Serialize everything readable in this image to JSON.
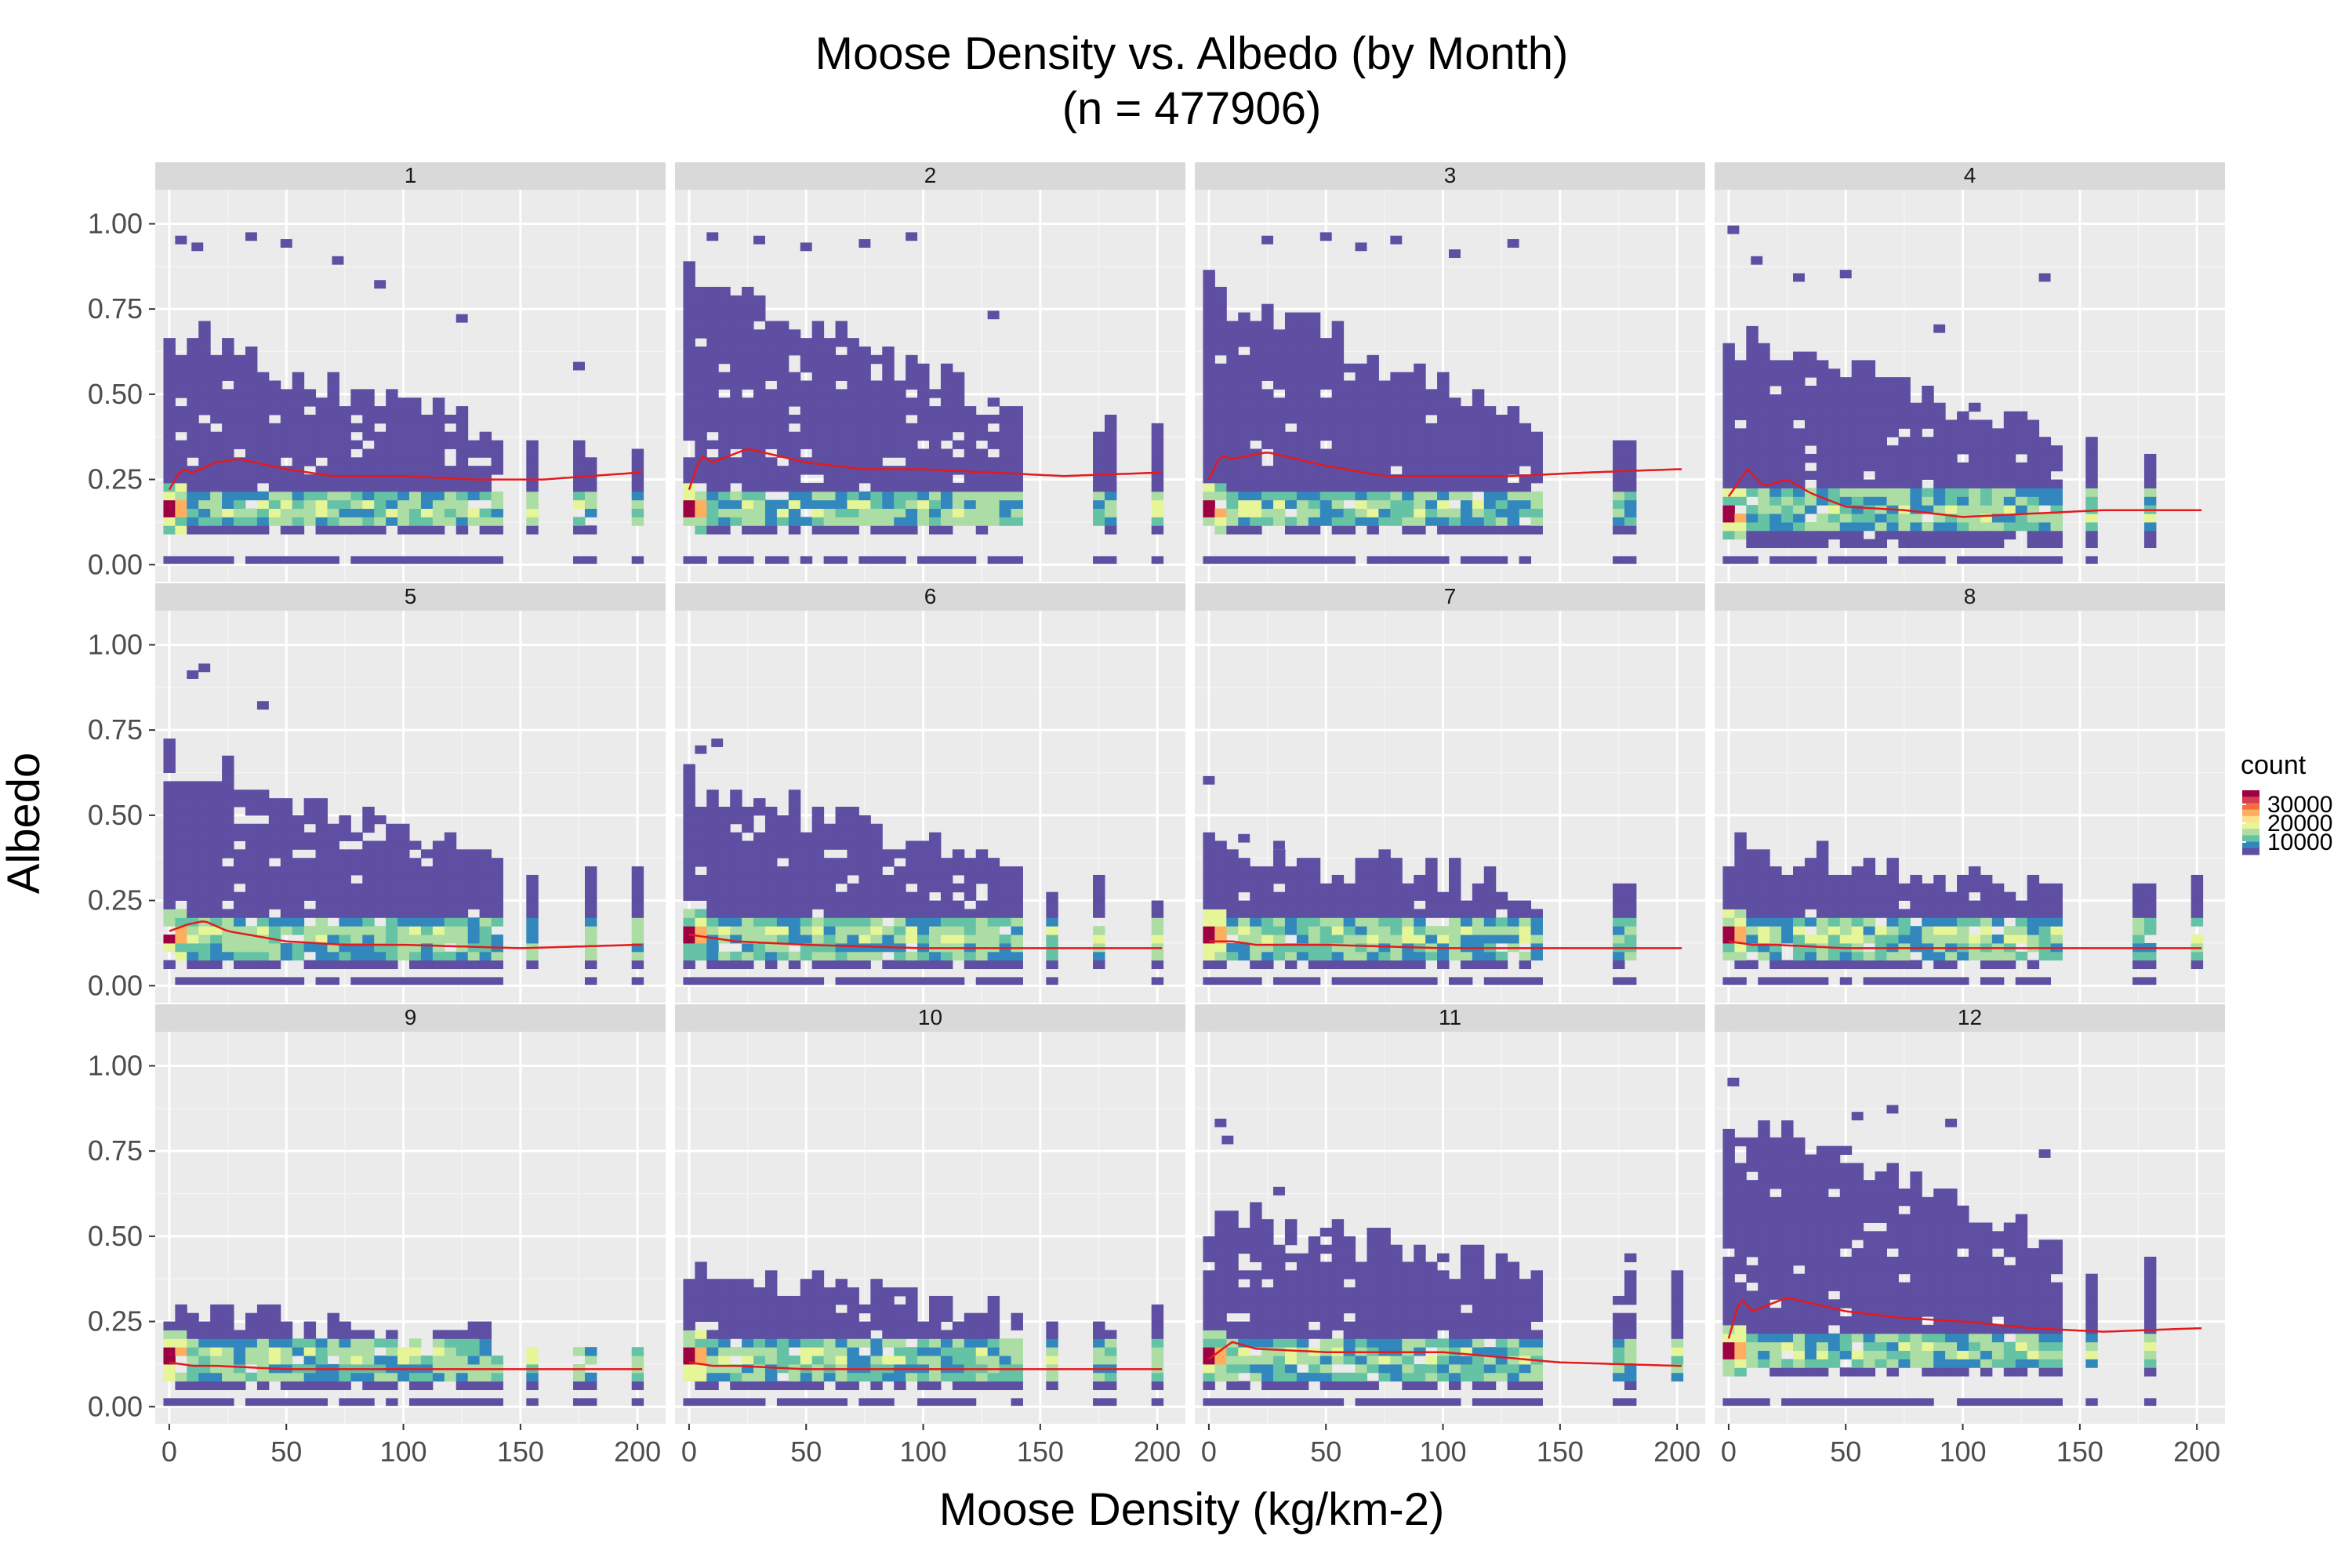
{
  "chart_data": {
    "type": "heatmap",
    "title_line1": "Moose Density vs. Albedo (by Month)",
    "title_line2": "(n = 477906)",
    "xlabel": "Moose Density (kg/km-2)",
    "ylabel": "Albedo",
    "xlim": [
      -6,
      212
    ],
    "ylim": [
      -0.05,
      1.1
    ],
    "x_ticks": [
      0,
      50,
      100,
      150,
      200
    ],
    "x_tick_labels": [
      "0",
      "50",
      "100",
      "150",
      "200"
    ],
    "y_ticks": [
      0,
      0.25,
      0.5,
      0.75,
      1.0
    ],
    "y_tick_labels": [
      "0.00",
      "0.25",
      "0.50",
      "0.75",
      "1.00"
    ],
    "facet_variable": "month",
    "facets": [
      {
        "month": "1",
        "max_albedo": 0.74,
        "min_albedo": 0.09,
        "outliers": [
          [
            5,
            0.94
          ],
          [
            12,
            0.92
          ],
          [
            35,
            0.95
          ],
          [
            50,
            0.93
          ],
          [
            72,
            0.88
          ],
          [
            90,
            0.81
          ],
          [
            125,
            0.71
          ],
          [
            175,
            0.57
          ]
        ],
        "density_cutoff": 0.9,
        "low_cluster_albedo": 0.15,
        "smooth_x": [
          0,
          5,
          10,
          20,
          30,
          50,
          70,
          100,
          130,
          160,
          200
        ],
        "smooth_y": [
          0.22,
          0.28,
          0.27,
          0.3,
          0.31,
          0.28,
          0.26,
          0.26,
          0.25,
          0.25,
          0.27
        ]
      },
      {
        "month": "2",
        "max_albedo": 0.89,
        "min_albedo": 0.09,
        "outliers": [
          [
            10,
            0.95
          ],
          [
            30,
            0.94
          ],
          [
            50,
            0.92
          ],
          [
            75,
            0.93
          ],
          [
            95,
            0.95
          ],
          [
            130,
            0.72
          ]
        ],
        "density_cutoff": 0.9,
        "low_cluster_albedo": 0.15,
        "smooth_x": [
          0,
          5,
          10,
          25,
          50,
          75,
          100,
          130,
          160,
          200
        ],
        "smooth_y": [
          0.22,
          0.32,
          0.3,
          0.34,
          0.3,
          0.28,
          0.28,
          0.27,
          0.26,
          0.27
        ]
      },
      {
        "month": "3",
        "max_albedo": 0.85,
        "min_albedo": 0.09,
        "outliers": [
          [
            25,
            0.94
          ],
          [
            50,
            0.95
          ],
          [
            65,
            0.92
          ],
          [
            80,
            0.94
          ],
          [
            105,
            0.9
          ],
          [
            130,
            0.93
          ]
        ],
        "density_cutoff": 0.9,
        "low_cluster_albedo": 0.15,
        "smooth_x": [
          0,
          5,
          10,
          25,
          50,
          75,
          100,
          130,
          160,
          200
        ],
        "smooth_y": [
          0.25,
          0.32,
          0.31,
          0.33,
          0.29,
          0.26,
          0.26,
          0.26,
          0.27,
          0.28
        ]
      },
      {
        "month": "4",
        "max_albedo": 0.72,
        "min_albedo": 0.05,
        "outliers": [
          [
            2,
            0.97
          ],
          [
            12,
            0.88
          ],
          [
            30,
            0.83
          ],
          [
            50,
            0.84
          ],
          [
            90,
            0.68
          ],
          [
            135,
            0.83
          ]
        ],
        "density_cutoff": 0.8,
        "low_cluster_albedo": 0.14,
        "smooth_x": [
          0,
          8,
          15,
          25,
          35,
          50,
          75,
          100,
          130,
          160,
          200
        ],
        "smooth_y": [
          0.2,
          0.28,
          0.23,
          0.25,
          0.21,
          0.17,
          0.16,
          0.14,
          0.15,
          0.16,
          0.16
        ]
      },
      {
        "month": "5",
        "max_albedo": 0.72,
        "min_albedo": 0.05,
        "outliers": [
          [
            10,
            0.9
          ],
          [
            15,
            0.92
          ],
          [
            40,
            0.81
          ]
        ],
        "density_cutoff": 0.8,
        "low_cluster_albedo": 0.13,
        "smooth_x": [
          0,
          8,
          15,
          25,
          50,
          75,
          100,
          150,
          200
        ],
        "smooth_y": [
          0.16,
          0.18,
          0.19,
          0.16,
          0.13,
          0.12,
          0.12,
          0.11,
          0.12
        ]
      },
      {
        "month": "6",
        "max_albedo": 0.65,
        "min_albedo": 0.05,
        "outliers": [
          [
            5,
            0.68
          ],
          [
            12,
            0.7
          ]
        ],
        "density_cutoff": 0.6,
        "low_cluster_albedo": 0.13,
        "smooth_x": [
          0,
          10,
          20,
          50,
          100,
          150,
          200
        ],
        "smooth_y": [
          0.15,
          0.14,
          0.13,
          0.12,
          0.11,
          0.11,
          0.11
        ]
      },
      {
        "month": "7",
        "max_albedo": 0.44,
        "min_albedo": 0.05,
        "outliers": [
          [
            0,
            0.59
          ],
          [
            15,
            0.42
          ],
          [
            30,
            0.4
          ]
        ],
        "density_cutoff": 0.5,
        "low_cluster_albedo": 0.13,
        "smooth_x": [
          0,
          10,
          20,
          50,
          100,
          150,
          200
        ],
        "smooth_y": [
          0.13,
          0.13,
          0.12,
          0.12,
          0.11,
          0.11,
          0.11
        ]
      },
      {
        "month": "8",
        "max_albedo": 0.45,
        "min_albedo": 0.05,
        "outliers": [],
        "density_cutoff": 0.5,
        "low_cluster_albedo": 0.13,
        "smooth_x": [
          0,
          10,
          20,
          50,
          100,
          150,
          200
        ],
        "smooth_y": [
          0.13,
          0.12,
          0.12,
          0.11,
          0.11,
          0.11,
          0.11
        ]
      },
      {
        "month": "9",
        "max_albedo": 0.32,
        "min_albedo": 0.05,
        "outliers": [],
        "density_cutoff": 0.4,
        "low_cluster_albedo": 0.13,
        "smooth_x": [
          0,
          10,
          20,
          50,
          100,
          150,
          200
        ],
        "smooth_y": [
          0.13,
          0.12,
          0.12,
          0.11,
          0.11,
          0.11,
          0.11
        ]
      },
      {
        "month": "10",
        "max_albedo": 0.44,
        "min_albedo": 0.05,
        "outliers": [],
        "density_cutoff": 0.45,
        "low_cluster_albedo": 0.13,
        "smooth_x": [
          0,
          10,
          20,
          50,
          100,
          150,
          200
        ],
        "smooth_y": [
          0.13,
          0.12,
          0.12,
          0.11,
          0.11,
          0.11,
          0.11
        ]
      },
      {
        "month": "11",
        "max_albedo": 0.6,
        "min_albedo": 0.05,
        "outliers": [
          [
            5,
            0.82
          ],
          [
            8,
            0.77
          ],
          [
            30,
            0.62
          ]
        ],
        "density_cutoff": 0.65,
        "low_cluster_albedo": 0.13,
        "smooth_x": [
          0,
          10,
          20,
          50,
          100,
          150,
          200
        ],
        "smooth_y": [
          0.14,
          0.19,
          0.17,
          0.16,
          0.16,
          0.13,
          0.12
        ]
      },
      {
        "month": "12",
        "max_albedo": 0.9,
        "min_albedo": 0.09,
        "outliers": [
          [
            2,
            0.94
          ],
          [
            55,
            0.84
          ],
          [
            70,
            0.86
          ],
          [
            95,
            0.82
          ],
          [
            135,
            0.73
          ]
        ],
        "density_cutoff": 0.9,
        "low_cluster_albedo": 0.15,
        "smooth_x": [
          0,
          5,
          10,
          25,
          50,
          75,
          100,
          130,
          160,
          200
        ],
        "smooth_y": [
          0.2,
          0.32,
          0.28,
          0.32,
          0.28,
          0.26,
          0.25,
          0.23,
          0.22,
          0.23
        ]
      }
    ],
    "legend": {
      "title": "count",
      "breaks": [
        "30000",
        "20000",
        "10000"
      ],
      "colors": [
        "#9e0142",
        "#d53e4f",
        "#f46d43",
        "#fdae61",
        "#fee08b",
        "#e6f598",
        "#abdda4",
        "#66c2a5",
        "#3288bd",
        "#5e4fa2"
      ],
      "smooth_color": "#e41a1c"
    },
    "panel_background": "#ebebeb",
    "strip_background": "#d9d9d9"
  }
}
